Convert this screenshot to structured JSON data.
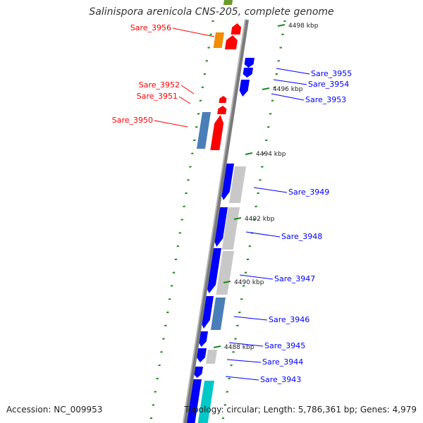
{
  "title": "Salinispora arenicola CNS-205, complete genome",
  "footer": {
    "accession": "Accession: NC_009953",
    "summary": "Topology: circular; Length: 5,786,361 bp; Genes: 4,979"
  },
  "colors": {
    "forward_strand": "#ff0000",
    "reverse_strand": "#0000ff",
    "tick": "#1a8a1a",
    "backbone": "#888888"
  },
  "scale_ticks": [
    {
      "label": "4498 kbp"
    },
    {
      "label": "4496 kbp"
    },
    {
      "label": "4494 kbp"
    },
    {
      "label": "4492 kbp"
    },
    {
      "label": "4490 kbp"
    },
    {
      "label": "4488 kbp"
    }
  ],
  "gene_labels": [
    {
      "label": "Sare_3956",
      "strand": "forward"
    },
    {
      "label": "Sare_3952",
      "strand": "forward"
    },
    {
      "label": "Sare_3951",
      "strand": "forward"
    },
    {
      "label": "Sare_3950",
      "strand": "forward"
    },
    {
      "label": "Sare_3955",
      "strand": "reverse"
    },
    {
      "label": "Sare_3954",
      "strand": "reverse"
    },
    {
      "label": "Sare_3953",
      "strand": "reverse"
    },
    {
      "label": "Sare_3949",
      "strand": "reverse"
    },
    {
      "label": "Sare_3948",
      "strand": "reverse"
    },
    {
      "label": "Sare_3947",
      "strand": "reverse"
    },
    {
      "label": "Sare_3946",
      "strand": "reverse"
    },
    {
      "label": "Sare_3945",
      "strand": "reverse"
    },
    {
      "label": "Sare_3944",
      "strand": "reverse"
    },
    {
      "label": "Sare_3943",
      "strand": "reverse"
    }
  ]
}
